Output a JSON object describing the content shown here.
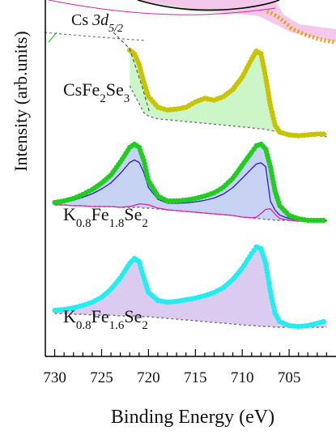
{
  "chart_data": {
    "type": "line",
    "title": "",
    "xlabel": "Binding Energy (eV)",
    "ylabel": "Intensity (arb.units)",
    "xlim": [
      731,
      700
    ],
    "x_reversed": true,
    "yticks_labeled": false,
    "xticks": [
      730,
      725,
      720,
      715,
      710,
      705
    ],
    "annotations": [
      "Cs 3d5/2"
    ],
    "colors": {
      "fit_total": "#000000",
      "component_blue": "#2222cc",
      "component_magenta": "#dd22aa",
      "background_dashed": "#777777",
      "fill_green": "#ccf5c8",
      "fill_blue": "#c8d2f2",
      "fill_pink": "#f4c8ea",
      "fill_purple": "#dccbf0"
    },
    "series": [
      {
        "name": "K0.8Fe1.6Se2",
        "label_parts": [
          {
            "t": "K",
            "sub": false
          },
          {
            "t": "0.8",
            "sub": true
          },
          {
            "t": "Fe",
            "sub": false
          },
          {
            "t": "1.6",
            "sub": true
          },
          {
            "t": "Se",
            "sub": false
          },
          {
            "t": "2",
            "sub": true
          }
        ],
        "marker_color": "#22eef2",
        "fill_color": "#dccbf0",
        "x": [
          730,
          729,
          728,
          727,
          726,
          725,
          724,
          723,
          722,
          721.5,
          721,
          720.5,
          720,
          719,
          718,
          717,
          716,
          715,
          714,
          713,
          712,
          711,
          710,
          709,
          708.5,
          708,
          707.5,
          707,
          706.5,
          706,
          705,
          704,
          703,
          702,
          701
        ],
        "y": [
          0.22,
          0.23,
          0.25,
          0.28,
          0.32,
          0.38,
          0.48,
          0.62,
          0.8,
          0.86,
          0.82,
          0.62,
          0.44,
          0.34,
          0.32,
          0.33,
          0.35,
          0.37,
          0.4,
          0.44,
          0.5,
          0.6,
          0.74,
          0.92,
          1.0,
          0.98,
          0.8,
          0.45,
          0.18,
          0.08,
          0.03,
          0.02,
          0.03,
          0.06,
          0.09
        ],
        "background": [
          0.18,
          0.18,
          0.17,
          0.17,
          0.16,
          0.16,
          0.16,
          0.15,
          0.15,
          0.15,
          0.15,
          0.14,
          0.14,
          0.13,
          0.12,
          0.11,
          0.1,
          0.09,
          0.08,
          0.07,
          0.06,
          0.05,
          0.04,
          0.03,
          0.03,
          0.02,
          0.02,
          0.02,
          0.01,
          0.01,
          0.01,
          0.01,
          0.01,
          0.01,
          0.01
        ]
      },
      {
        "name": "K0.8Fe1.8Se2",
        "label_parts": [
          {
            "t": "K",
            "sub": false
          },
          {
            "t": "0.8",
            "sub": true
          },
          {
            "t": "Fe",
            "sub": false
          },
          {
            "t": "1.8",
            "sub": true
          },
          {
            "t": "Se",
            "sub": false
          },
          {
            "t": "2",
            "sub": true
          }
        ],
        "marker_color": "#22cc22",
        "fill_color": "#c8d2f2",
        "x": [
          730,
          729,
          728,
          727,
          726,
          725,
          724,
          723,
          722,
          721.5,
          721,
          720.5,
          720,
          719,
          718,
          717,
          716,
          715,
          714,
          713,
          712,
          711,
          710,
          709,
          708.5,
          708,
          707.5,
          707,
          706.5,
          706,
          705,
          704,
          703,
          702,
          701
        ],
        "y": [
          0.28,
          0.3,
          0.33,
          0.38,
          0.44,
          0.52,
          0.62,
          0.78,
          0.96,
          1.0,
          0.96,
          0.8,
          0.55,
          0.36,
          0.3,
          0.3,
          0.31,
          0.33,
          0.36,
          0.4,
          0.47,
          0.58,
          0.74,
          0.9,
          0.98,
          1.0,
          0.94,
          0.72,
          0.42,
          0.24,
          0.12,
          0.08,
          0.06,
          0.06,
          0.06
        ],
        "background": [
          0.25,
          0.25,
          0.24,
          0.24,
          0.23,
          0.23,
          0.23,
          0.22,
          0.22,
          0.22,
          0.22,
          0.21,
          0.21,
          0.2,
          0.19,
          0.18,
          0.17,
          0.16,
          0.15,
          0.14,
          0.13,
          0.12,
          0.1,
          0.09,
          0.08,
          0.08,
          0.07,
          0.07,
          0.06,
          0.06,
          0.06,
          0.05,
          0.05,
          0.05,
          0.05
        ]
      },
      {
        "name": "CsFe2Se3",
        "label_parts": [
          {
            "t": "CsFe",
            "sub": false
          },
          {
            "t": "2",
            "sub": true
          },
          {
            "t": "Se",
            "sub": false
          },
          {
            "t": "3",
            "sub": true
          }
        ],
        "marker_color": "#c8c400",
        "fill_color": "#ccf5c8",
        "x": [
          722,
          721.5,
          721,
          720.5,
          720,
          719,
          718,
          717,
          716,
          715,
          714,
          713,
          712,
          711,
          710,
          709,
          708.5,
          708,
          707.5,
          707,
          706.5,
          706,
          705,
          704,
          703,
          702,
          701
        ],
        "y": [
          1.0,
          0.96,
          0.84,
          0.64,
          0.48,
          0.36,
          0.33,
          0.34,
          0.36,
          0.42,
          0.46,
          0.44,
          0.48,
          0.56,
          0.7,
          0.9,
          0.99,
          0.96,
          0.7,
          0.38,
          0.16,
          0.08,
          0.05,
          0.04,
          0.05,
          0.06,
          0.06
        ],
        "background": [
          0.6,
          0.5,
          0.4,
          0.3,
          0.26,
          0.23,
          0.22,
          0.21,
          0.2,
          0.19,
          0.18,
          0.17,
          0.16,
          0.15,
          0.14,
          0.13,
          0.12,
          0.12,
          0.11,
          0.1,
          0.09,
          0.08,
          0.07,
          0.06,
          0.05,
          0.04,
          0.03
        ]
      }
    ]
  }
}
